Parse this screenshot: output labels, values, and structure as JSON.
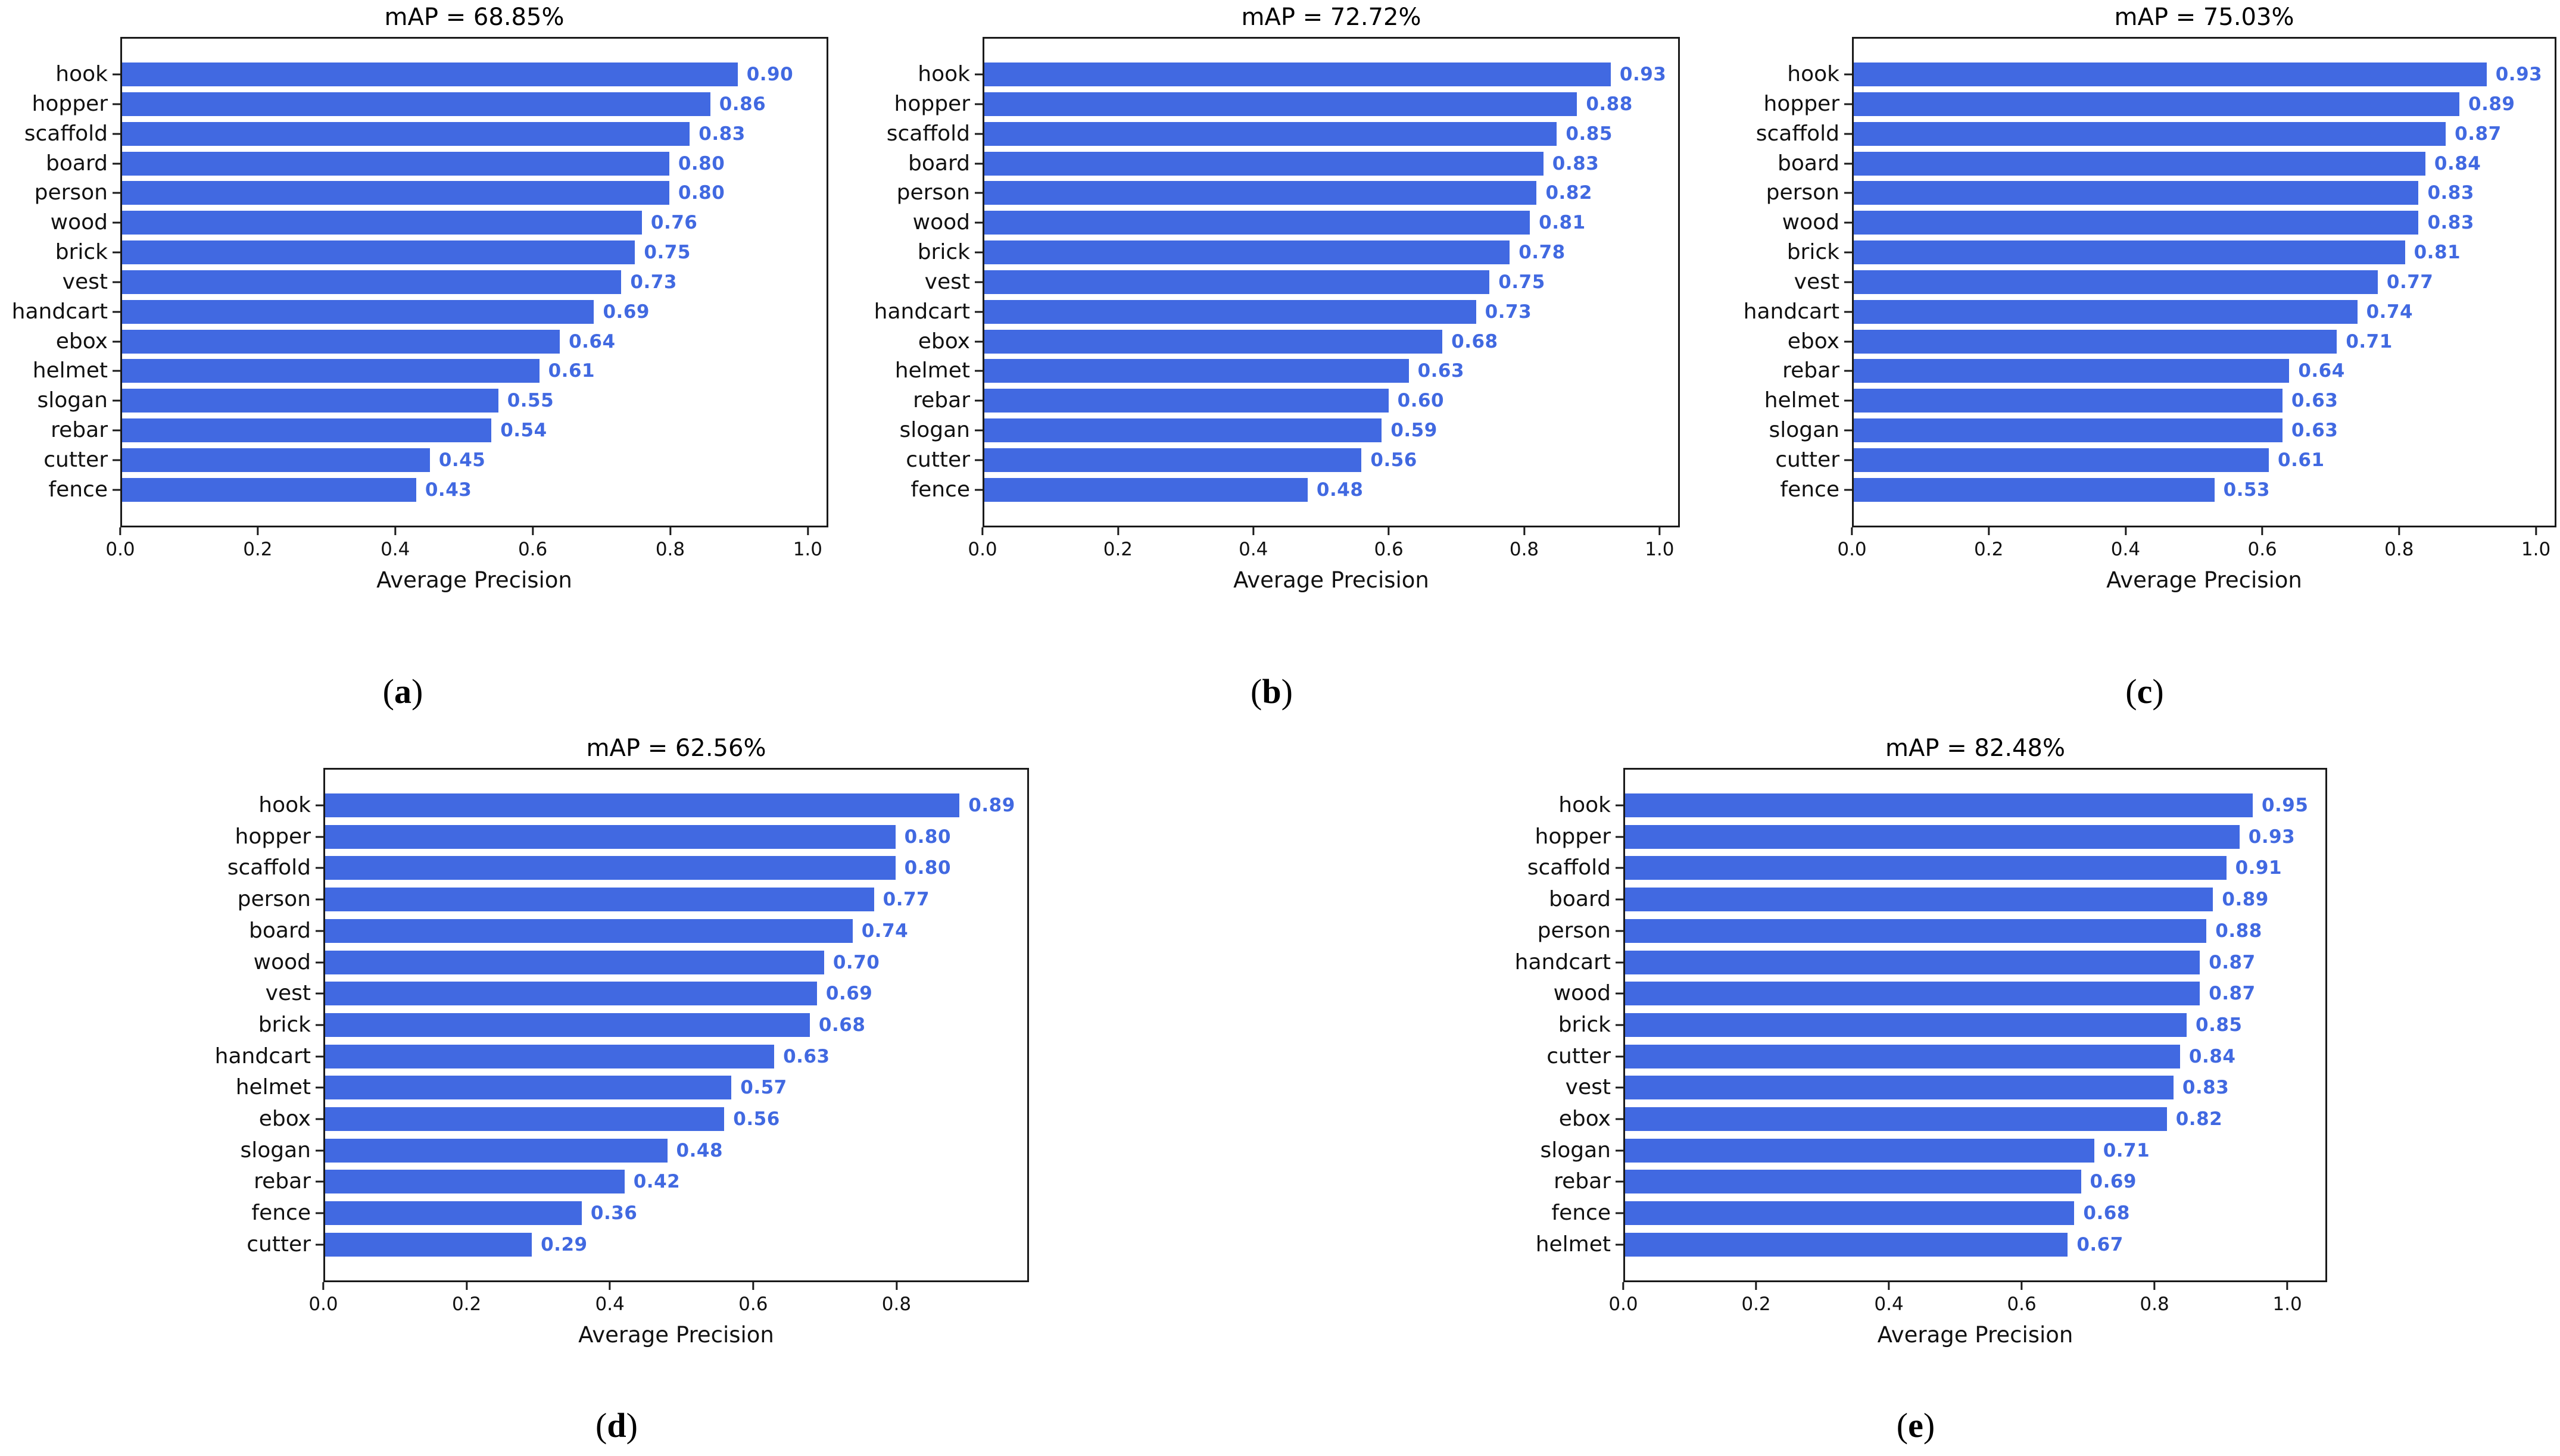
{
  "figure": {
    "bar_color": "#4169E1",
    "value_label_color": "#4169E1",
    "axis_color": "#1a1a1a",
    "background": "#ffffff",
    "paren_open": "(",
    "paren_close": ")"
  },
  "captions": [
    {
      "label": "(a)",
      "letter": "a"
    },
    {
      "label": "(b)",
      "letter": "b"
    },
    {
      "label": "(c)",
      "letter": "c"
    },
    {
      "label": "(d)",
      "letter": "d"
    },
    {
      "label": "(e)",
      "letter": "e"
    }
  ],
  "chart_data": [
    {
      "type": "bar",
      "panel": "a",
      "title": "mAP = 68.85%",
      "xlabel": "Average Precision",
      "ylabel": "",
      "orientation": "horizontal",
      "grid": false,
      "categories": [
        "hook",
        "hopper",
        "scaffold",
        "board",
        "person",
        "wood",
        "brick",
        "vest",
        "handcart",
        "ebox",
        "helmet",
        "slogan",
        "rebar",
        "cutter",
        "fence"
      ],
      "values": [
        0.9,
        0.86,
        0.83,
        0.8,
        0.8,
        0.76,
        0.75,
        0.73,
        0.69,
        0.64,
        0.61,
        0.55,
        0.54,
        0.45,
        0.43
      ],
      "xticks": [
        0.0,
        0.2,
        0.4,
        0.6,
        0.8,
        1.0
      ],
      "xlim": [
        0,
        1.03
      ]
    },
    {
      "type": "bar",
      "panel": "b",
      "title": "mAP = 72.72%",
      "xlabel": "Average Precision",
      "ylabel": "",
      "orientation": "horizontal",
      "grid": false,
      "categories": [
        "hook",
        "hopper",
        "scaffold",
        "board",
        "person",
        "wood",
        "brick",
        "vest",
        "handcart",
        "ebox",
        "helmet",
        "rebar",
        "slogan",
        "cutter",
        "fence"
      ],
      "values": [
        0.93,
        0.88,
        0.85,
        0.83,
        0.82,
        0.81,
        0.78,
        0.75,
        0.73,
        0.68,
        0.63,
        0.6,
        0.59,
        0.56,
        0.48
      ],
      "xticks": [
        0.0,
        0.2,
        0.4,
        0.6,
        0.8,
        1.0
      ],
      "xlim": [
        0,
        1.03
      ]
    },
    {
      "type": "bar",
      "panel": "c",
      "title": "mAP = 75.03%",
      "xlabel": "Average Precision",
      "ylabel": "",
      "orientation": "horizontal",
      "grid": false,
      "categories": [
        "hook",
        "hopper",
        "scaffold",
        "board",
        "person",
        "wood",
        "brick",
        "vest",
        "handcart",
        "ebox",
        "rebar",
        "helmet",
        "slogan",
        "cutter",
        "fence"
      ],
      "values": [
        0.93,
        0.89,
        0.87,
        0.84,
        0.83,
        0.83,
        0.81,
        0.77,
        0.74,
        0.71,
        0.64,
        0.63,
        0.63,
        0.61,
        0.53
      ],
      "xticks": [
        0.0,
        0.2,
        0.4,
        0.6,
        0.8,
        1.0
      ],
      "xlim": [
        0,
        1.03
      ]
    },
    {
      "type": "bar",
      "panel": "d",
      "title": "mAP = 62.56%",
      "xlabel": "Average Precision",
      "ylabel": "",
      "orientation": "horizontal",
      "grid": false,
      "categories": [
        "hook",
        "hopper",
        "scaffold",
        "person",
        "board",
        "wood",
        "vest",
        "brick",
        "handcart",
        "helmet",
        "ebox",
        "slogan",
        "rebar",
        "fence",
        "cutter"
      ],
      "values": [
        0.89,
        0.8,
        0.8,
        0.77,
        0.74,
        0.7,
        0.69,
        0.68,
        0.63,
        0.57,
        0.56,
        0.48,
        0.42,
        0.36,
        0.29
      ],
      "xticks": [
        0.0,
        0.2,
        0.4,
        0.6,
        0.8
      ],
      "xlim": [
        0,
        0.985
      ]
    },
    {
      "type": "bar",
      "panel": "e",
      "title": "mAP = 82.48%",
      "xlabel": "Average Precision",
      "ylabel": "",
      "orientation": "horizontal",
      "grid": false,
      "categories": [
        "hook",
        "hopper",
        "scaffold",
        "board",
        "person",
        "handcart",
        "wood",
        "brick",
        "cutter",
        "vest",
        "ebox",
        "slogan",
        "rebar",
        "fence",
        "helmet"
      ],
      "values": [
        0.95,
        0.93,
        0.91,
        0.89,
        0.88,
        0.87,
        0.87,
        0.85,
        0.84,
        0.83,
        0.82,
        0.71,
        0.69,
        0.68,
        0.67
      ],
      "xticks": [
        0.0,
        0.2,
        0.4,
        0.6,
        0.8,
        1.0
      ],
      "xlim": [
        0,
        1.06
      ]
    }
  ]
}
